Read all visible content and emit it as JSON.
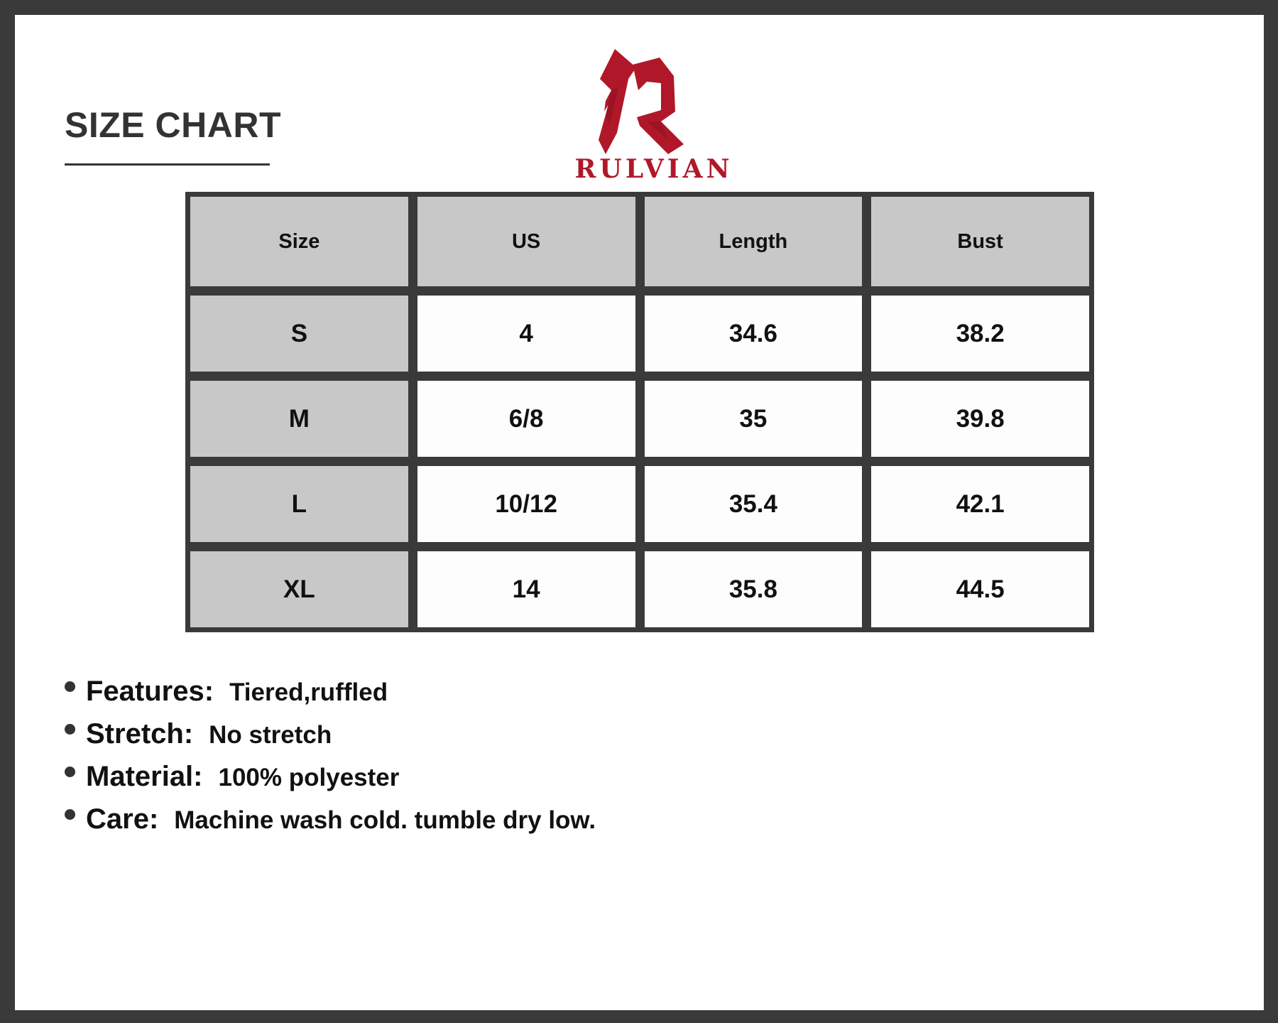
{
  "title": "SIZE CHART",
  "brand": {
    "name": "RULVIAN",
    "color": "#b01829"
  },
  "table": {
    "headers": [
      "Size",
      "US",
      "Length",
      "Bust"
    ],
    "rows": [
      [
        "S",
        "4",
        "34.6",
        "38.2"
      ],
      [
        "M",
        "6/8",
        "35",
        "39.8"
      ],
      [
        "L",
        "10/12",
        "35.4",
        "42.1"
      ],
      [
        "XL",
        "14",
        "35.8",
        "44.5"
      ]
    ]
  },
  "details": [
    {
      "label": "Features:",
      "value": "Tiered,ruffled"
    },
    {
      "label": "Stretch:",
      "value": "No stretch"
    },
    {
      "label": "Material:",
      "value": "100% polyester"
    },
    {
      "label": "Care:",
      "value": "Machine wash cold. tumble dry low."
    }
  ]
}
